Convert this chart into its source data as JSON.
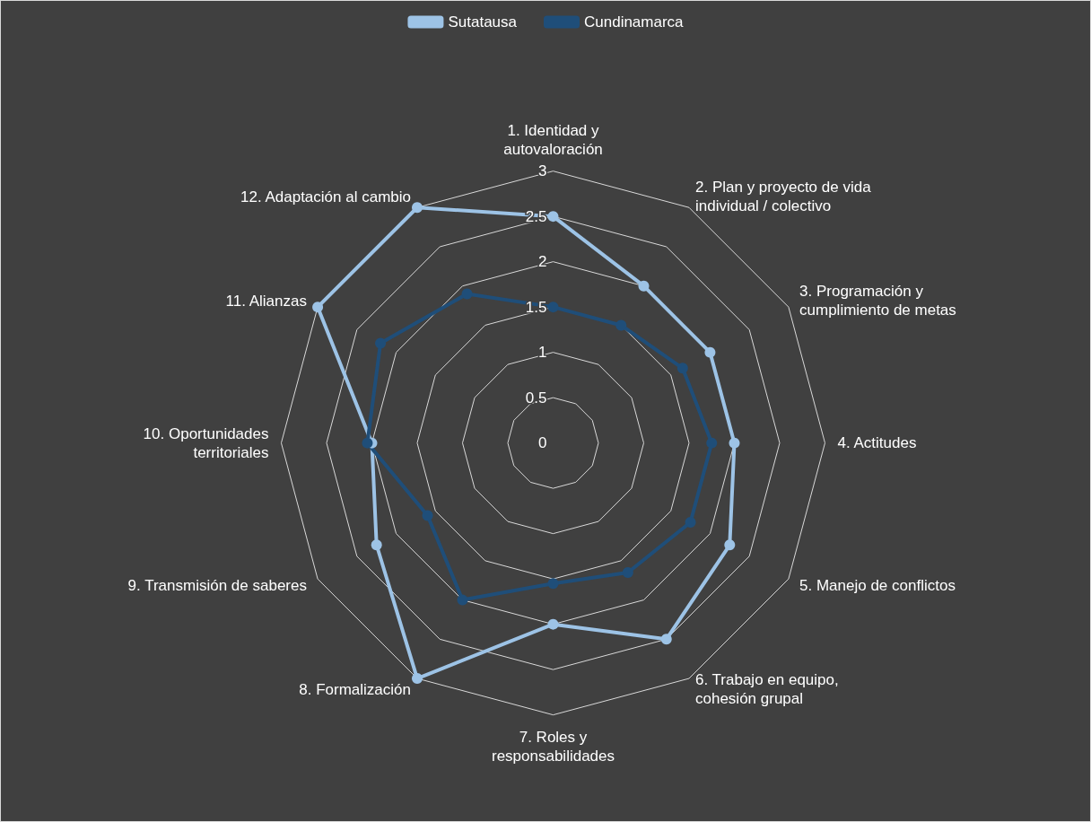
{
  "chart_data": {
    "type": "radar",
    "categories": [
      "1. Identidad y autovaloración",
      "2. Plan y proyecto de vida individual / colectivo",
      "3. Programación y cumplimiento de metas",
      "4. Actitudes",
      "5. Manejo de conflictos",
      "6. Trabajo en equipo, cohesión grupal",
      "7. Roles y responsabilidades",
      "8. Formalización",
      "9. Transmisión de saberes",
      "10. Oportunidades territoriales",
      "11. Alianzas",
      "12. Adaptación al cambio"
    ],
    "series": [
      {
        "name": "Sutatausa",
        "color": "#9dc3e6",
        "values": [
          2.5,
          2.0,
          2.0,
          2.0,
          2.25,
          2.5,
          2.0,
          3.0,
          2.25,
          2.0,
          3.0,
          3.0
        ]
      },
      {
        "name": "Cundinamarca",
        "color": "#1f4e79",
        "values": [
          1.5,
          1.5,
          1.65,
          1.75,
          1.75,
          1.65,
          1.55,
          2.0,
          1.6,
          2.05,
          2.2,
          1.9
        ]
      }
    ],
    "ylim": [
      0,
      3
    ],
    "yticks": [
      0,
      0.5,
      1,
      1.5,
      2,
      2.5,
      3
    ],
    "legend": "top",
    "marker": "circle"
  }
}
